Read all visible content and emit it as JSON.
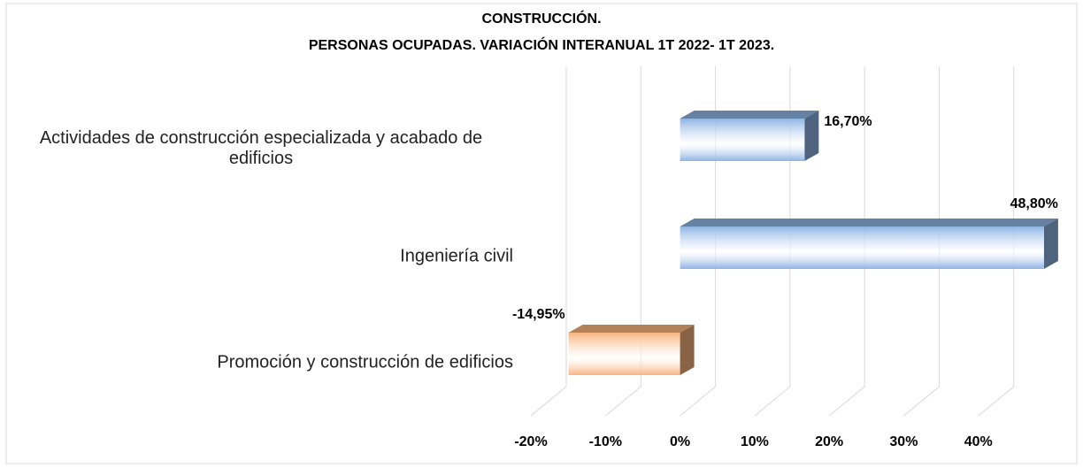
{
  "chart_data": {
    "type": "bar3d_horizontal",
    "title": "CONSTRUCCIÓN.",
    "subtitle": "PERSONAS OCUPADAS. VARIACIÓN INTERANUAL 1T 2022- 1T 2023.",
    "categories": [
      "Actividades de construcción especializada y acabado de edificios",
      "Ingeniería civil",
      "Promoción y construcción de edificios"
    ],
    "values": [
      16.7,
      48.8,
      -14.95
    ],
    "value_labels": [
      "16,70%",
      "48,80%",
      "-14,95%"
    ],
    "colors": [
      "#8db4e3",
      "#8db4e3",
      "#f9b47f"
    ],
    "xlim": [
      -20,
      50
    ],
    "xticks": [
      {
        "value": -20,
        "label": "-20%"
      },
      {
        "value": -10,
        "label": "-10%"
      },
      {
        "value": 0,
        "label": "0%"
      },
      {
        "value": 10,
        "label": "10%"
      },
      {
        "value": 20,
        "label": "20%"
      },
      {
        "value": 30,
        "label": "30%"
      },
      {
        "value": 40,
        "label": "40%"
      }
    ],
    "grid": true
  }
}
